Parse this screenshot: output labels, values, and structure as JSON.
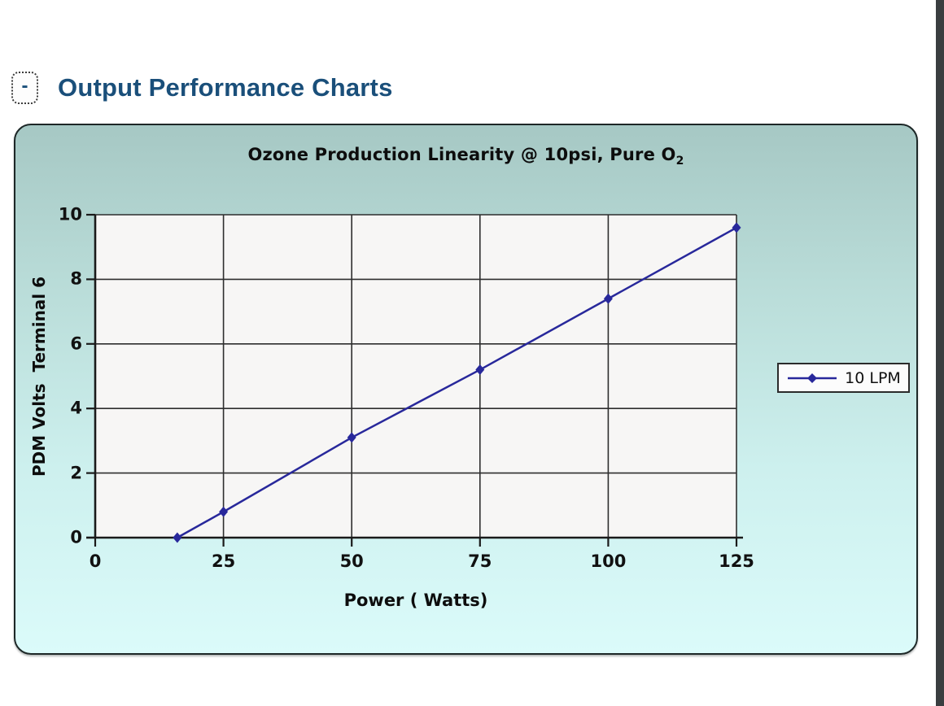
{
  "page": {
    "background": "#ffffff",
    "edge_strip_color": "#3a3e40"
  },
  "section_header": {
    "collapse_button": "-",
    "title": "Output Performance Charts",
    "title_color": "#1a4f7a"
  },
  "panel": {
    "border_color": "#1d2727",
    "gradient_top": "#a6c8c4",
    "gradient_bottom": "#dbfbfa"
  },
  "chart_data": {
    "type": "line",
    "title": "Ozone Production Linearity @ 10psi, Pure O2",
    "title_main": "Ozone Production Linearity @ 10psi, Pure O",
    "title_sub": "2",
    "xlabel": "Power ( Watts)",
    "ylabel": "PDM Volts  Terminal 6",
    "xlim": [
      0,
      125
    ],
    "ylim": [
      0,
      10
    ],
    "x_ticks": [
      0,
      25,
      50,
      75,
      100,
      125
    ],
    "y_ticks": [
      0,
      2,
      4,
      6,
      8,
      10
    ],
    "grid": true,
    "legend": {
      "position": "right",
      "entries": [
        "10 LPM"
      ]
    },
    "series": [
      {
        "name": "10 LPM",
        "color": "#28289b",
        "marker": "diamond",
        "points": [
          {
            "x": 16,
            "y": 0
          },
          {
            "x": 25,
            "y": 0.8
          },
          {
            "x": 50,
            "y": 3.1
          },
          {
            "x": 75,
            "y": 5.2
          },
          {
            "x": 100,
            "y": 7.4
          },
          {
            "x": 125,
            "y": 9.6
          }
        ]
      }
    ],
    "colors": {
      "plot_bg": "#f7f6f5",
      "grid": "#2e2e2e",
      "axis": "#1a1a1a",
      "tick_text": "#111111"
    }
  }
}
